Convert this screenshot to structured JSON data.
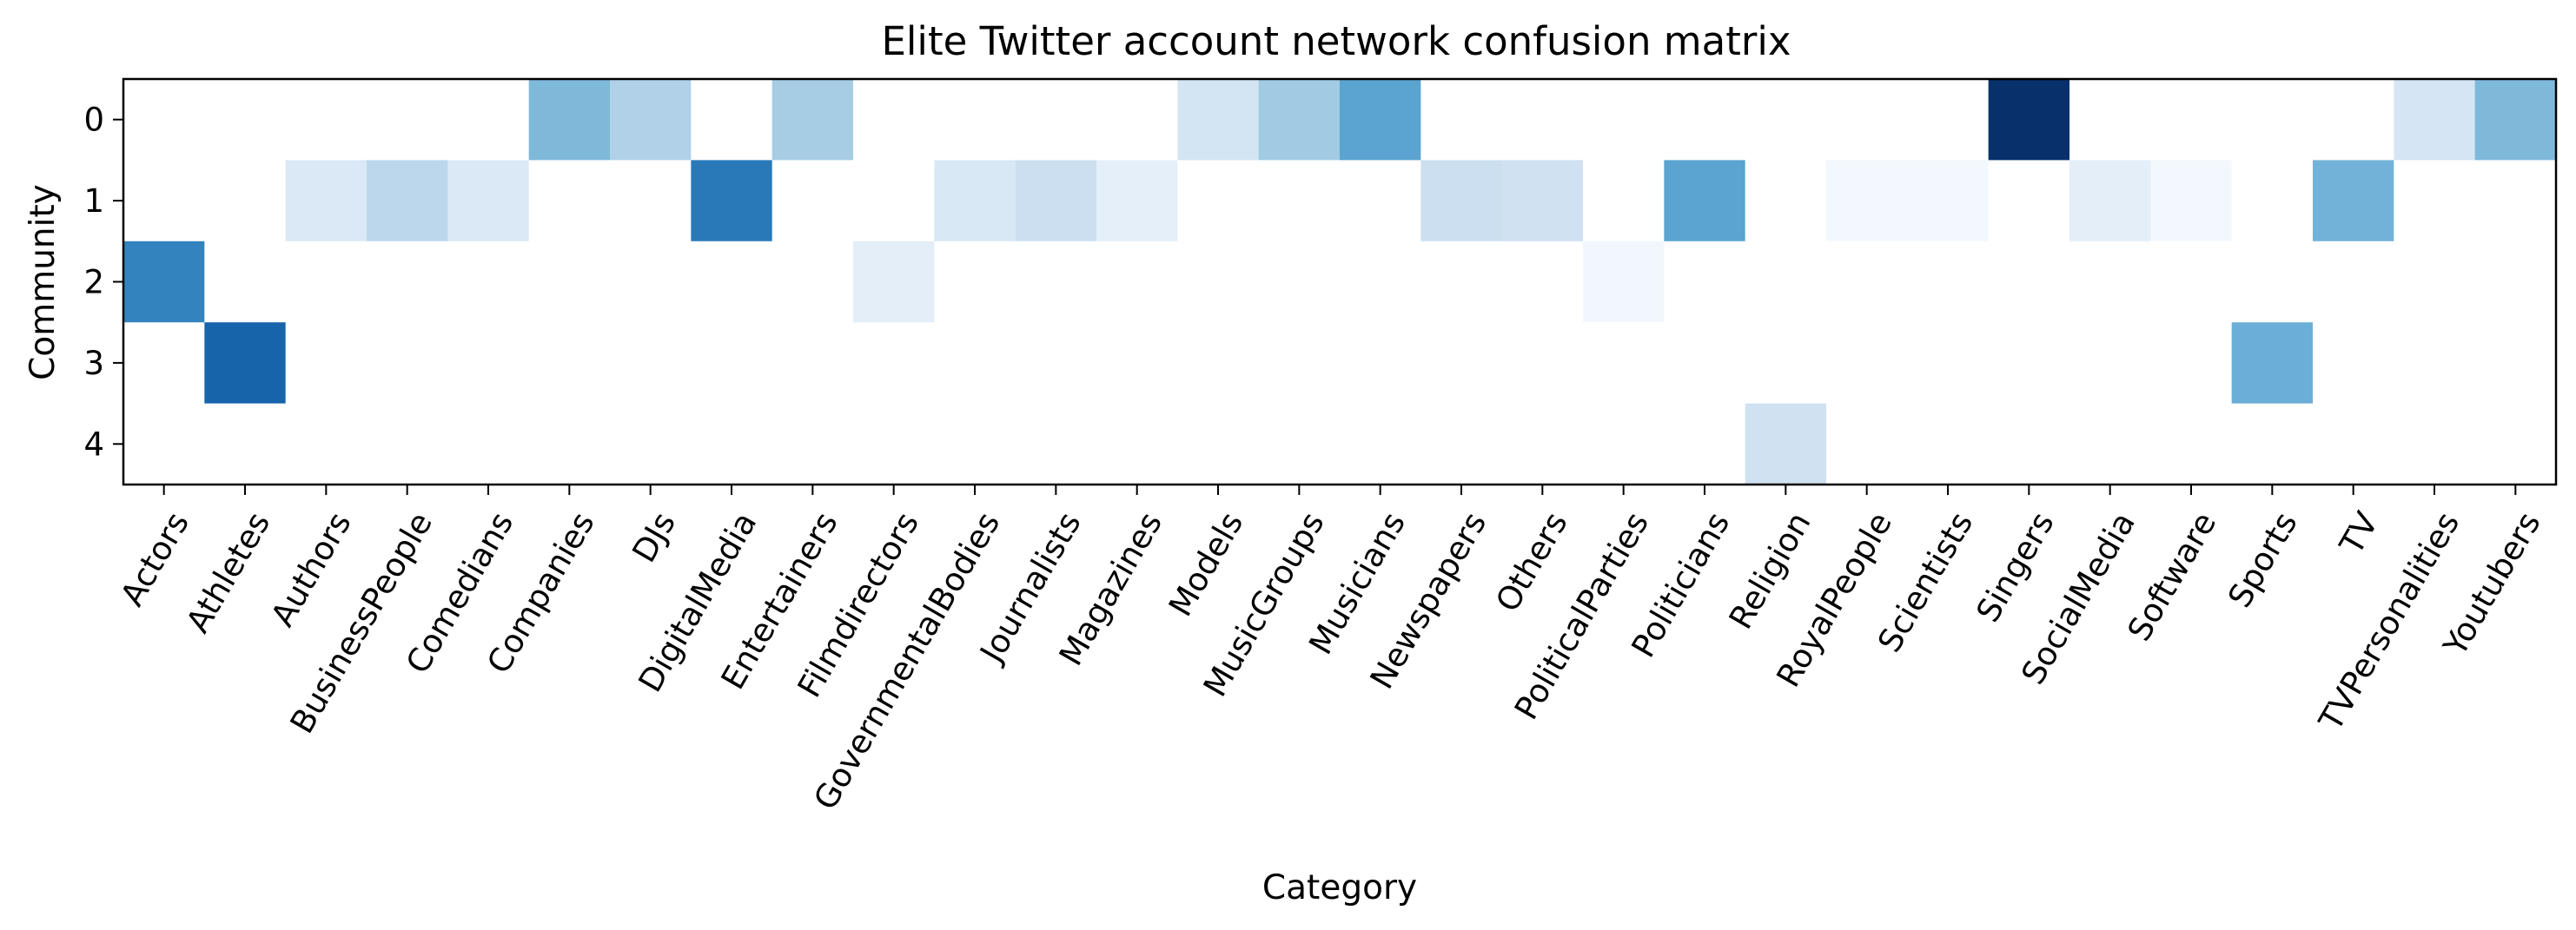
{
  "chart_data": {
    "type": "heatmap",
    "title": "Elite Twitter account network confusion matrix",
    "xlabel": "Category",
    "ylabel": "Community",
    "colormap": "Blues",
    "color_low": "#f7fbff",
    "color_high": "#08306b",
    "x_categories": [
      "Actors",
      "Athletes",
      "Authors",
      "BusinessPeople",
      "Comedians",
      "Companies",
      "DJs",
      "DigitalMedia",
      "Entertainers",
      "Filmdirectors",
      "GovernmentalBodies",
      "Journalists",
      "Magazines",
      "Models",
      "MusicGroups",
      "Musicians",
      "Newspapers",
      "Others",
      "PoliticalParties",
      "Politicians",
      "Religion",
      "RoyalPeople",
      "Scientists",
      "Singers",
      "SocialMedia",
      "Software",
      "Sports",
      "TV",
      "TVPersonalities",
      "Youtubers"
    ],
    "y_categories": [
      "0",
      "1",
      "2",
      "3",
      "4"
    ],
    "values": [
      [
        0,
        0,
        0,
        0,
        0,
        0.45,
        0.32,
        0,
        0.35,
        0,
        0,
        0,
        0,
        0.18,
        0.37,
        0.55,
        0,
        0,
        0,
        0,
        0,
        0,
        0,
        1.0,
        0,
        0,
        0,
        0,
        0.17,
        0.45
      ],
      [
        0,
        0,
        0.14,
        0.28,
        0.14,
        0,
        0,
        0.72,
        0,
        0,
        0.15,
        0.22,
        0.09,
        0,
        0,
        0,
        0.22,
        0.2,
        0,
        0.55,
        0,
        0.02,
        0.02,
        0,
        0.1,
        0.02,
        0,
        0.48,
        0,
        0
      ],
      [
        0.68,
        0,
        0,
        0,
        0,
        0,
        0,
        0,
        0,
        0.1,
        0,
        0,
        0,
        0,
        0,
        0,
        0,
        0,
        0.03,
        0,
        0,
        0,
        0,
        0,
        0,
        0,
        0,
        0,
        0,
        0
      ],
      [
        0,
        0.8,
        0,
        0,
        0,
        0,
        0,
        0,
        0,
        0,
        0,
        0,
        0,
        0,
        0,
        0,
        0,
        0,
        0,
        0,
        0,
        0,
        0,
        0,
        0,
        0,
        0.5,
        0,
        0,
        0
      ],
      [
        0,
        0,
        0,
        0,
        0,
        0,
        0,
        0,
        0,
        0,
        0,
        0,
        0,
        0,
        0,
        0,
        0,
        0,
        0,
        0,
        0.2,
        0,
        0,
        0,
        0,
        0,
        0,
        0,
        0,
        0
      ]
    ]
  }
}
